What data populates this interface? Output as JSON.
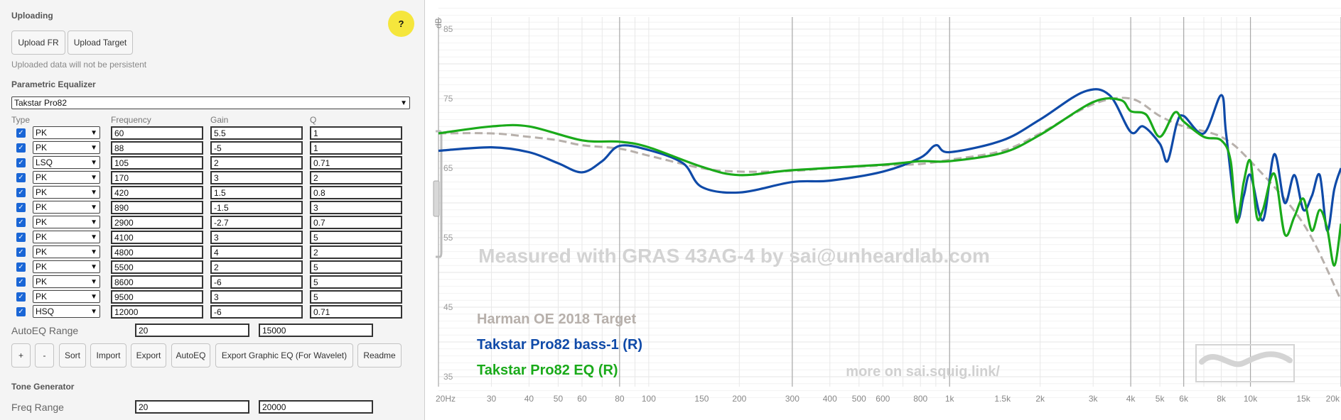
{
  "uploading": {
    "title": "Uploading",
    "upload_fr": "Upload FR",
    "upload_target": "Upload Target",
    "note": "Uploaded data will not be persistent",
    "help": "?"
  },
  "peq": {
    "title": "Parametric Equalizer",
    "selected_model": "Takstar Pro82",
    "headers": {
      "type": "Type",
      "frequency": "Frequency",
      "gain": "Gain",
      "q": "Q"
    },
    "filters": [
      {
        "enabled": true,
        "type": "PK",
        "freq": "60",
        "gain": "5.5",
        "q": "1"
      },
      {
        "enabled": true,
        "type": "PK",
        "freq": "88",
        "gain": "-5",
        "q": "1"
      },
      {
        "enabled": true,
        "type": "LSQ",
        "freq": "105",
        "gain": "2",
        "q": "0.71"
      },
      {
        "enabled": true,
        "type": "PK",
        "freq": "170",
        "gain": "3",
        "q": "2"
      },
      {
        "enabled": true,
        "type": "PK",
        "freq": "420",
        "gain": "1.5",
        "q": "0.8"
      },
      {
        "enabled": true,
        "type": "PK",
        "freq": "890",
        "gain": "-1.5",
        "q": "3"
      },
      {
        "enabled": true,
        "type": "PK",
        "freq": "2900",
        "gain": "-2.7",
        "q": "0.7"
      },
      {
        "enabled": true,
        "type": "PK",
        "freq": "4100",
        "gain": "3",
        "q": "5"
      },
      {
        "enabled": true,
        "type": "PK",
        "freq": "4800",
        "gain": "4",
        "q": "2"
      },
      {
        "enabled": true,
        "type": "PK",
        "freq": "5500",
        "gain": "2",
        "q": "5"
      },
      {
        "enabled": true,
        "type": "PK",
        "freq": "8600",
        "gain": "-6",
        "q": "5"
      },
      {
        "enabled": true,
        "type": "PK",
        "freq": "9500",
        "gain": "3",
        "q": "5"
      },
      {
        "enabled": true,
        "type": "HSQ",
        "freq": "12000",
        "gain": "-6",
        "q": "0.71"
      }
    ],
    "autoeq_range": {
      "label": "AutoEQ Range",
      "from": "20",
      "to": "15000"
    },
    "buttons": [
      "+",
      "-",
      "Sort",
      "Import",
      "Export",
      "AutoEQ",
      "Export Graphic EQ (For Wavelet)",
      "Readme"
    ]
  },
  "tone": {
    "title": "Tone Generator",
    "freq_range": {
      "label": "Freq Range",
      "from": "20",
      "to": "20000"
    }
  },
  "graph": {
    "y_unit": "dB",
    "watermark": "Measured with GRAS 43AG-4 by sai@unheardlab.com",
    "more_link": "more on sai.squig.link/",
    "y_ticks": [
      85,
      75,
      65,
      55,
      45,
      35
    ],
    "x_ticks": [
      {
        "f": 20,
        "label": "20Hz"
      },
      {
        "f": 30,
        "label": "30"
      },
      {
        "f": 40,
        "label": "40"
      },
      {
        "f": 50,
        "label": "50"
      },
      {
        "f": 60,
        "label": "60"
      },
      {
        "f": 80,
        "label": "80"
      },
      {
        "f": 100,
        "label": "100"
      },
      {
        "f": 150,
        "label": "150"
      },
      {
        "f": 200,
        "label": "200"
      },
      {
        "f": 300,
        "label": "300"
      },
      {
        "f": 400,
        "label": "400"
      },
      {
        "f": 500,
        "label": "500"
      },
      {
        "f": 600,
        "label": "600"
      },
      {
        "f": 800,
        "label": "800"
      },
      {
        "f": 1000,
        "label": "1k"
      },
      {
        "f": 1500,
        "label": "1.5k"
      },
      {
        "f": 2000,
        "label": "2k"
      },
      {
        "f": 3000,
        "label": "3k"
      },
      {
        "f": 4000,
        "label": "4k"
      },
      {
        "f": 5000,
        "label": "5k"
      },
      {
        "f": 6000,
        "label": "6k"
      },
      {
        "f": 8000,
        "label": "8k"
      },
      {
        "f": 10000,
        "label": "10k"
      },
      {
        "f": 15000,
        "label": "15k"
      },
      {
        "f": 20000,
        "label": "20k"
      }
    ],
    "major_lines": [
      20,
      80,
      300,
      1000,
      4000,
      6000,
      10000,
      20000
    ],
    "colors": {
      "target": "#b7b0ab",
      "bass": "#0f4aa8",
      "eq": "#1aaa1a",
      "grid": "#e4e4e4",
      "major": "#a8a8a8"
    }
  },
  "chart_data": {
    "type": "line",
    "xlabel": "",
    "ylabel": "dB",
    "xscale": "log",
    "xlim": [
      20,
      20000
    ],
    "ylim": [
      30,
      88
    ],
    "series": [
      {
        "name": "Harman OE 2018 Target",
        "style": "dashed",
        "points": [
          [
            20,
            70
          ],
          [
            30,
            70
          ],
          [
            40,
            69.5
          ],
          [
            50,
            69
          ],
          [
            60,
            68.3
          ],
          [
            80,
            67.8
          ],
          [
            100,
            66.8
          ],
          [
            150,
            65
          ],
          [
            200,
            64.5
          ],
          [
            300,
            64.6
          ],
          [
            400,
            65
          ],
          [
            600,
            65.4
          ],
          [
            800,
            65.6
          ],
          [
            1000,
            66.2
          ],
          [
            1500,
            67.5
          ],
          [
            2000,
            70
          ],
          [
            3000,
            74.2
          ],
          [
            4000,
            75
          ],
          [
            5000,
            72.5
          ],
          [
            6000,
            71
          ],
          [
            8000,
            69.5
          ],
          [
            10000,
            66
          ],
          [
            15000,
            57
          ],
          [
            20000,
            46
          ]
        ]
      },
      {
        "name": "Takstar Pro82 bass-1 (R)",
        "style": "solid",
        "points": [
          [
            20,
            67.5
          ],
          [
            30,
            68
          ],
          [
            40,
            67.3
          ],
          [
            50,
            65.7
          ],
          [
            60,
            64.4
          ],
          [
            70,
            66
          ],
          [
            80,
            68.2
          ],
          [
            100,
            67.6
          ],
          [
            130,
            65.7
          ],
          [
            150,
            62.3
          ],
          [
            200,
            61.5
          ],
          [
            300,
            63
          ],
          [
            400,
            63.2
          ],
          [
            600,
            64.5
          ],
          [
            800,
            66.5
          ],
          [
            900,
            68.3
          ],
          [
            1000,
            67.3
          ],
          [
            1500,
            69
          ],
          [
            2000,
            72
          ],
          [
            2800,
            76
          ],
          [
            3400,
            75.5
          ],
          [
            4000,
            70.2
          ],
          [
            4400,
            71
          ],
          [
            5000,
            68.5
          ],
          [
            5300,
            66
          ],
          [
            5700,
            71.5
          ],
          [
            6000,
            72.5
          ],
          [
            7000,
            70
          ],
          [
            8000,
            75.5
          ],
          [
            8300,
            70
          ],
          [
            9000,
            58
          ],
          [
            9500,
            61
          ],
          [
            10000,
            64
          ],
          [
            11000,
            57.5
          ],
          [
            12000,
            67
          ],
          [
            13000,
            60
          ],
          [
            14000,
            64
          ],
          [
            15000,
            59
          ],
          [
            16000,
            61
          ],
          [
            17000,
            64
          ],
          [
            18000,
            56
          ],
          [
            19000,
            62
          ],
          [
            20000,
            65
          ]
        ]
      },
      {
        "name": "Takstar Pro82 EQ (R)",
        "style": "solid",
        "points": [
          [
            20,
            70
          ],
          [
            30,
            71
          ],
          [
            40,
            71
          ],
          [
            60,
            69
          ],
          [
            80,
            68.8
          ],
          [
            100,
            68
          ],
          [
            150,
            65.2
          ],
          [
            200,
            64
          ],
          [
            300,
            64.7
          ],
          [
            600,
            65.5
          ],
          [
            800,
            66
          ],
          [
            1000,
            66
          ],
          [
            1500,
            67.2
          ],
          [
            2000,
            69.8
          ],
          [
            3000,
            74.5
          ],
          [
            3700,
            74.8
          ],
          [
            4000,
            73.2
          ],
          [
            4500,
            72.7
          ],
          [
            5000,
            69.5
          ],
          [
            5600,
            73
          ],
          [
            6000,
            71.7
          ],
          [
            7000,
            69.5
          ],
          [
            8000,
            69
          ],
          [
            8600,
            66
          ],
          [
            9000,
            57.2
          ],
          [
            9500,
            63
          ],
          [
            10000,
            66
          ],
          [
            10500,
            58
          ],
          [
            11000,
            59
          ],
          [
            12000,
            64.2
          ],
          [
            13000,
            55.5
          ],
          [
            14000,
            58
          ],
          [
            15000,
            60.6
          ],
          [
            16000,
            56
          ],
          [
            17000,
            59
          ],
          [
            18000,
            56.3
          ],
          [
            19000,
            51
          ],
          [
            20000,
            57
          ]
        ]
      }
    ]
  }
}
